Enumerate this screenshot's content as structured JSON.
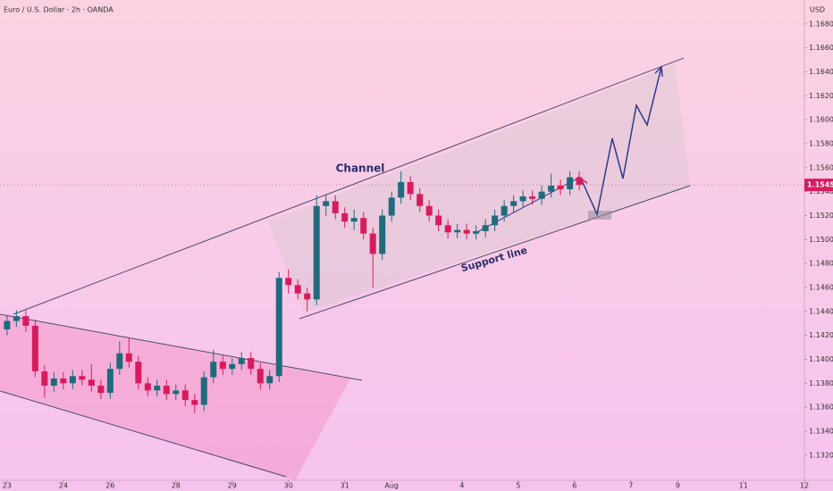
{
  "chart_data": {
    "type": "candlestick",
    "title": "Euro / U.S. Dollar · 2h · OANDA",
    "y_axis_label": "USD",
    "annotations": [
      "Channel",
      "Support line"
    ],
    "last_price": 1.15456,
    "last_price_label": "1.15456",
    "up_color": "#1f6b7c",
    "down_color": "#d81b5e",
    "xlim": [
      -1.5,
      170
    ],
    "ylim": [
      1.1299,
      1.17
    ],
    "xticks": [
      {
        "value": 0,
        "label": "23"
      },
      {
        "value": 12,
        "label": "24"
      },
      {
        "value": 22,
        "label": "26"
      },
      {
        "value": 36,
        "label": "28"
      },
      {
        "value": 48,
        "label": "29"
      },
      {
        "value": 60,
        "label": "30"
      },
      {
        "value": 72,
        "label": "31"
      },
      {
        "value": 82,
        "label": "Aug"
      },
      {
        "value": 97,
        "label": "4"
      },
      {
        "value": 109,
        "label": "5"
      },
      {
        "value": 121,
        "label": "6"
      },
      {
        "value": 133,
        "label": "7"
      },
      {
        "value": 143,
        "label": "9"
      },
      {
        "value": 157,
        "label": "11"
      },
      {
        "value": 170,
        "label": "12"
      }
    ],
    "yticks": [
      {
        "value": 1.132,
        "label": "1.13200"
      },
      {
        "value": 1.134,
        "label": "1.13400"
      },
      {
        "value": 1.136,
        "label": "1.13600"
      },
      {
        "value": 1.138,
        "label": "1.13800"
      },
      {
        "value": 1.14,
        "label": "1.14000"
      },
      {
        "value": 1.142,
        "label": "1.14200"
      },
      {
        "value": 1.144,
        "label": "1.14400"
      },
      {
        "value": 1.146,
        "label": "1.14600"
      },
      {
        "value": 1.148,
        "label": "1.14800"
      },
      {
        "value": 1.15,
        "label": "1.15000"
      },
      {
        "value": 1.152,
        "label": "1.15200"
      },
      {
        "value": 1.154,
        "label": "1.15400"
      },
      {
        "value": 1.156,
        "label": "1.15600"
      },
      {
        "value": 1.158,
        "label": "1.15800"
      },
      {
        "value": 1.16,
        "label": "1.16000"
      },
      {
        "value": 1.162,
        "label": "1.16200"
      },
      {
        "value": 1.164,
        "label": "1.16400"
      },
      {
        "value": 1.166,
        "label": "1.16600"
      },
      {
        "value": 1.168,
        "label": "1.16800"
      }
    ],
    "x": [
      0,
      2,
      4,
      6,
      8,
      10,
      12,
      14,
      16,
      18,
      20,
      22,
      24,
      26,
      28,
      30,
      32,
      34,
      36,
      38,
      40,
      42,
      44,
      46,
      48,
      50,
      52,
      54,
      56,
      58,
      60,
      62,
      64,
      66,
      68,
      70,
      72,
      74,
      76,
      78,
      80,
      82,
      84,
      86,
      88,
      90,
      92,
      94,
      96,
      98,
      100,
      102,
      104,
      106,
      108,
      110,
      112,
      114,
      116,
      118,
      120,
      122
    ],
    "open": [
      1.1425,
      1.1432,
      1.1436,
      1.1428,
      1.139,
      1.1378,
      1.1384,
      1.138,
      1.1386,
      1.1383,
      1.1378,
      1.1372,
      1.1392,
      1.1405,
      1.1398,
      1.138,
      1.1374,
      1.1378,
      1.1371,
      1.1374,
      1.1366,
      1.1362,
      1.1385,
      1.1398,
      1.1392,
      1.1396,
      1.1401,
      1.1392,
      1.138,
      1.1386,
      1.1468,
      1.1462,
      1.1455,
      1.145,
      1.1528,
      1.1532,
      1.1522,
      1.1515,
      1.1518,
      1.1505,
      1.1488,
      1.152,
      1.1535,
      1.1548,
      1.1538,
      1.1528,
      1.152,
      1.1512,
      1.1506,
      1.1508,
      1.1505,
      1.1507,
      1.1512,
      1.152,
      1.1528,
      1.1532,
      1.1536,
      1.1534,
      1.154,
      1.1545,
      1.1542,
      1.1552
    ],
    "high": [
      1.1437,
      1.1441,
      1.1441,
      1.1433,
      1.1395,
      1.1389,
      1.1389,
      1.1391,
      1.1391,
      1.1396,
      1.1383,
      1.1397,
      1.1415,
      1.1418,
      1.1403,
      1.1385,
      1.1383,
      1.1383,
      1.1379,
      1.1379,
      1.1371,
      1.139,
      1.1408,
      1.1403,
      1.1401,
      1.1406,
      1.1406,
      1.1397,
      1.1391,
      1.1473,
      1.1475,
      1.1467,
      1.146,
      1.1537,
      1.1537,
      1.1537,
      1.1527,
      1.1525,
      1.1523,
      1.151,
      1.1525,
      1.154,
      1.1557,
      1.1553,
      1.1543,
      1.1533,
      1.1525,
      1.1517,
      1.1513,
      1.1513,
      1.1512,
      1.1517,
      1.1525,
      1.1533,
      1.1537,
      1.1541,
      1.1541,
      1.1545,
      1.1555,
      1.155,
      1.1557,
      1.1557
    ],
    "low": [
      1.142,
      1.1427,
      1.1423,
      1.1385,
      1.1368,
      1.1373,
      1.1375,
      1.1375,
      1.1378,
      1.1373,
      1.1367,
      1.1367,
      1.1387,
      1.1393,
      1.1375,
      1.1369,
      1.1369,
      1.1366,
      1.1366,
      1.1361,
      1.1355,
      1.1357,
      1.138,
      1.1387,
      1.1387,
      1.1391,
      1.1387,
      1.1375,
      1.1375,
      1.1381,
      1.1455,
      1.145,
      1.144,
      1.1445,
      1.152,
      1.1517,
      1.151,
      1.1508,
      1.15,
      1.146,
      1.1483,
      1.1515,
      1.153,
      1.1533,
      1.1523,
      1.1515,
      1.1507,
      1.1501,
      1.1501,
      1.15,
      1.15,
      1.1502,
      1.1507,
      1.1515,
      1.1523,
      1.1527,
      1.1529,
      1.1529,
      1.1535,
      1.1537,
      1.1537,
      1.1541
    ],
    "close": [
      1.1432,
      1.1436,
      1.1428,
      1.139,
      1.1378,
      1.1384,
      1.138,
      1.1386,
      1.1383,
      1.1378,
      1.1372,
      1.1392,
      1.1405,
      1.1398,
      1.138,
      1.1374,
      1.1378,
      1.1371,
      1.1374,
      1.1366,
      1.1362,
      1.1385,
      1.1398,
      1.1392,
      1.1396,
      1.1401,
      1.1392,
      1.138,
      1.1386,
      1.1468,
      1.1462,
      1.1455,
      1.145,
      1.1528,
      1.1532,
      1.1522,
      1.1515,
      1.1518,
      1.1505,
      1.1488,
      1.152,
      1.1535,
      1.1548,
      1.1538,
      1.1528,
      1.152,
      1.1512,
      1.1506,
      1.1508,
      1.1505,
      1.1507,
      1.1512,
      1.152,
      1.1528,
      1.1532,
      1.1536,
      1.1534,
      1.154,
      1.1545,
      1.1542,
      1.1552,
      1.15456
    ]
  }
}
